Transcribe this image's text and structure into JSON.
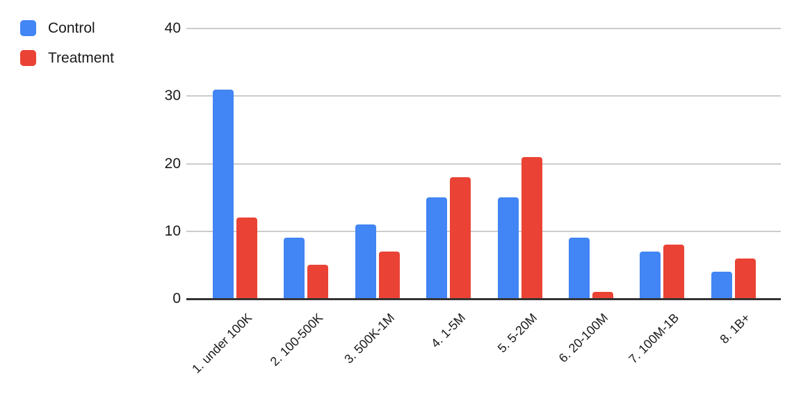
{
  "chart_data": {
    "type": "bar",
    "title": "",
    "xlabel": "",
    "ylabel": "",
    "categories": [
      "1. under 100K",
      "2. 100-500K",
      "3. 500K-1M",
      "4. 1-5M",
      "5. 5-20M",
      "6. 20-100M",
      "7. 100M-1B",
      "8. 1B+"
    ],
    "series": [
      {
        "name": "Control",
        "color": "#4285F4",
        "values": [
          31,
          9,
          11,
          15,
          15,
          9,
          7,
          4
        ]
      },
      {
        "name": "Treatment",
        "color": "#EA4335",
        "values": [
          12,
          5,
          7,
          18,
          21,
          1,
          8,
          6
        ]
      }
    ],
    "ylim": [
      0,
      40
    ],
    "yticks": [
      0,
      10,
      20,
      30,
      40
    ],
    "grid": true,
    "legend_position": "top-left",
    "colors": {
      "gridline": "#cccccc",
      "axis_line": "#333333",
      "label_text": "#1a1a1a"
    }
  }
}
